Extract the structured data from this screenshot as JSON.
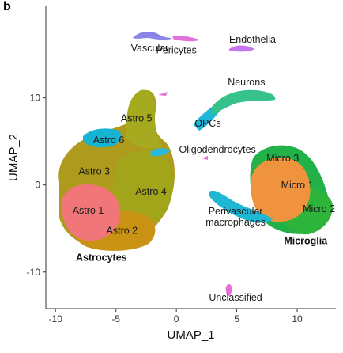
{
  "panel_letter": "b",
  "chart_data": {
    "type": "scatter",
    "xlabel": "UMAP_1",
    "ylabel": "UMAP_2",
    "xlim": [
      -10.8,
      13.2
    ],
    "ylim": [
      -14.2,
      20.5
    ],
    "x_ticks": [
      -10,
      -5,
      0,
      5,
      10
    ],
    "y_ticks": [
      -10,
      0,
      10
    ],
    "x_tick_labels": [
      "-10",
      "-5",
      "0",
      "5",
      "10"
    ],
    "y_tick_labels": [
      "-10",
      "0",
      "10"
    ],
    "grid": false,
    "legend": "none",
    "clusters": [
      {
        "name": "Astro 1",
        "color": "#F0767A",
        "label_pos": [
          -7.3,
          -3.3
        ]
      },
      {
        "name": "Astro 2",
        "color": "#C99212",
        "label_pos": [
          -4.5,
          -5.6
        ]
      },
      {
        "name": "Astro 3",
        "color": "#AE9A1C",
        "label_pos": [
          -6.8,
          1.2
        ]
      },
      {
        "name": "Astro 4",
        "color": "#A2A51A",
        "label_pos": [
          -2.1,
          -1.1
        ]
      },
      {
        "name": "Astro 5",
        "color": "#A5AA1E",
        "label_pos": [
          -3.3,
          7.3
        ]
      },
      {
        "name": "Astro 6",
        "color": "#17B3D3",
        "label_pos": [
          -5.6,
          4.8
        ]
      },
      {
        "name": "Oligodendrocytes",
        "color": "#2AB8DC",
        "label_pos": [
          3.4,
          3.7
        ]
      },
      {
        "name": "OPCs",
        "color": "#21B6D8",
        "label_pos": [
          2.6,
          6.7
        ]
      },
      {
        "name": "Neurons",
        "color": "#36C28A",
        "label_pos": [
          5.8,
          11.4
        ]
      },
      {
        "name": "Vascular",
        "color": "#8A86E8",
        "label_pos": [
          -2.2,
          15.3
        ]
      },
      {
        "name": "Pericytes",
        "color": "#E372D8",
        "label_pos": [
          0.0,
          15.1
        ]
      },
      {
        "name": "Endothelia",
        "color": "#C676EC",
        "label_pos": [
          6.3,
          16.3
        ]
      },
      {
        "name": "Micro 1",
        "color": "#F0933E",
        "label_pos": [
          10.0,
          -0.4
        ]
      },
      {
        "name": "Micro 2",
        "color": "#2DB53B",
        "label_pos": [
          11.8,
          -3.1
        ]
      },
      {
        "name": "Micro 3",
        "color": "#22B048",
        "label_pos": [
          8.8,
          2.7
        ]
      },
      {
        "name": "Perivascular macrophages",
        "color": "#1EB8D4",
        "label_pos": [
          4.9,
          -3.4
        ]
      },
      {
        "name": "Unclassified",
        "color": "#E86DD6",
        "label_pos": [
          4.9,
          -13.3
        ]
      }
    ],
    "group_labels": [
      {
        "name": "Astrocytes",
        "label_pos": [
          -6.2,
          -8.7
        ]
      },
      {
        "name": "Microglia",
        "label_pos": [
          10.7,
          -6.8
        ]
      }
    ]
  }
}
